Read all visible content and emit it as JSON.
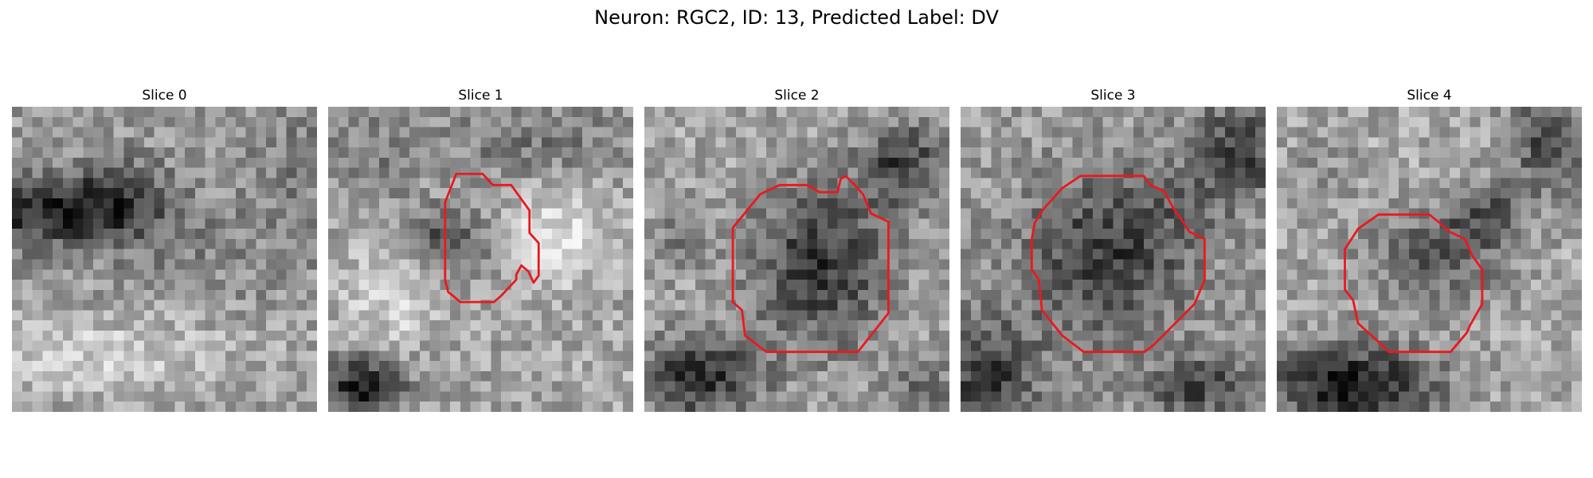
{
  "figure": {
    "title": "Neuron: RGC2, ID: 13, Predicted Label: DV"
  },
  "colors": {
    "contour": "#e8191f",
    "background": "#ffffff"
  },
  "panels": [
    {
      "title": "Slice 0",
      "image": "grayscale microscopy slice",
      "has_contour": false
    },
    {
      "title": "Slice 1",
      "image": "grayscale microscopy slice",
      "has_contour": true
    },
    {
      "title": "Slice 2",
      "image": "grayscale microscopy slice",
      "has_contour": true
    },
    {
      "title": "Slice 3",
      "image": "grayscale microscopy slice",
      "has_contour": true
    },
    {
      "title": "Slice 4",
      "image": "grayscale microscopy slice",
      "has_contour": true
    }
  ]
}
